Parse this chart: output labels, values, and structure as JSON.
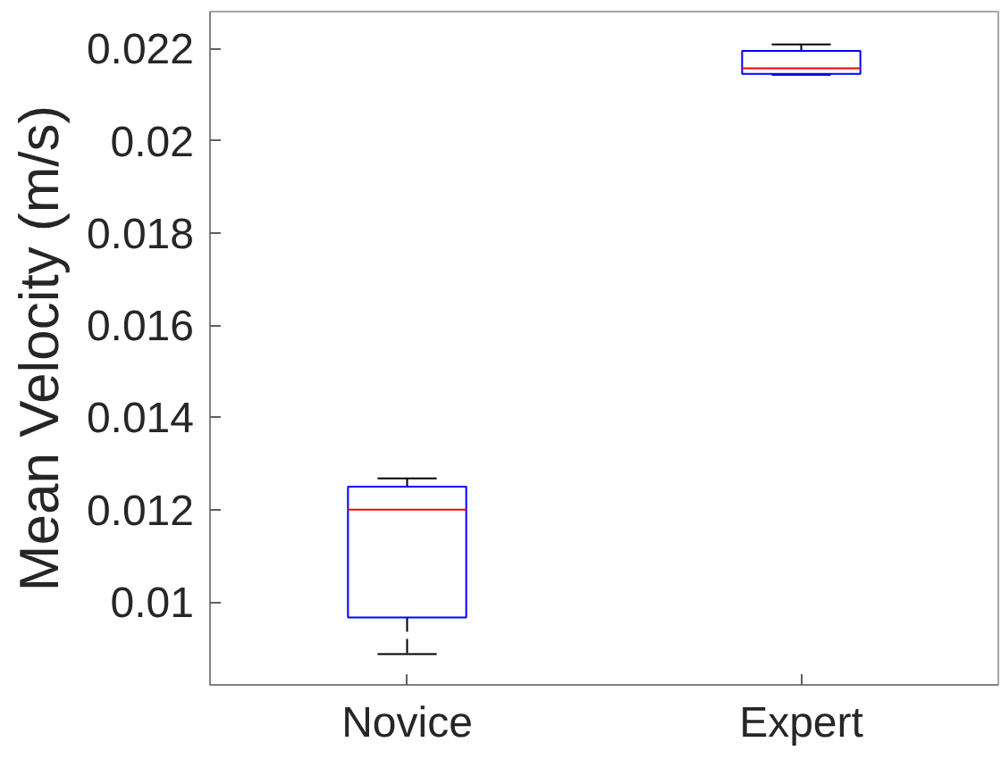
{
  "chart_data": {
    "type": "box",
    "ylabel": "Mean Velocity (m/s)",
    "categories": [
      "Novice",
      "Expert"
    ],
    "series": [
      {
        "color": "#0000ff",
        "boxes": [
          {
            "low": 0.00887,
            "q1": 0.00966,
            "median": 0.012,
            "q3": 0.0125,
            "high": 0.01268
          },
          {
            "low": 0.02143,
            "q1": 0.02145,
            "median": 0.02157,
            "q3": 0.02195,
            "high": 0.02209
          }
        ]
      }
    ],
    "ylim": [
      0.0082,
      0.0228
    ],
    "yticks": [
      0.01,
      0.012,
      0.014,
      0.016,
      0.018,
      0.02,
      0.022
    ],
    "grid": false
  }
}
